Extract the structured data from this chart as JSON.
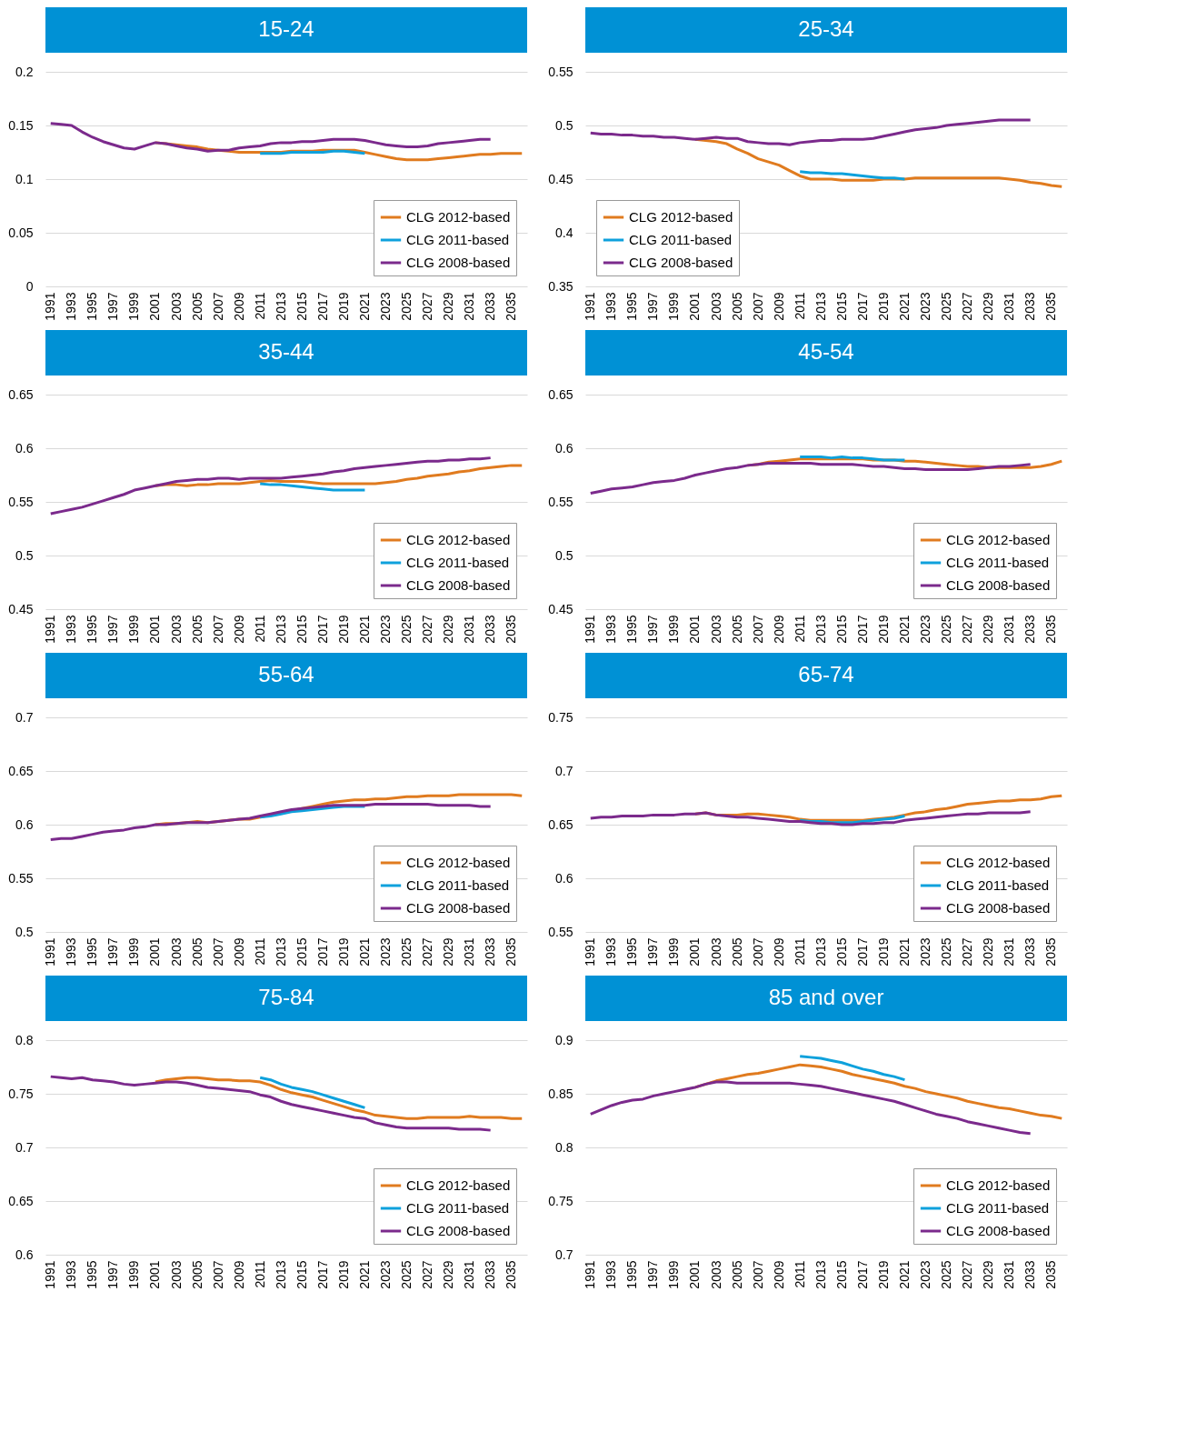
{
  "chart_data": [
    {
      "type": "line",
      "title": "15-24",
      "categories": [
        "1991",
        null,
        "1993",
        null,
        "1995",
        null,
        "1997",
        null,
        "1999",
        null,
        "2001",
        null,
        "2003",
        null,
        "2005",
        null,
        "2007",
        null,
        "2009",
        null,
        "2011",
        null,
        "2013",
        null,
        "2015",
        null,
        "2017",
        null,
        "2019",
        null,
        "2021",
        null,
        "2023",
        null,
        "2025",
        null,
        "2027",
        null,
        "2029",
        null,
        "2031",
        null,
        "2033",
        null,
        "2035",
        null
      ],
      "ylim": [
        0,
        0.2
      ],
      "yticks": [
        0,
        0.05,
        0.1,
        0.15,
        0.2
      ],
      "grid": "y",
      "legend": "bottom right",
      "series": [
        {
          "name": "CLG 2012-based",
          "color": "#e07b1f",
          "values": [
            null,
            null,
            null,
            null,
            null,
            null,
            null,
            null,
            null,
            null,
            0.134,
            0.133,
            0.132,
            0.131,
            0.13,
            0.128,
            0.127,
            0.126,
            0.125,
            0.125,
            0.125,
            0.125,
            0.125,
            0.126,
            0.126,
            0.126,
            0.127,
            0.127,
            0.127,
            0.127,
            0.125,
            0.123,
            0.121,
            0.119,
            0.118,
            0.118,
            0.118,
            0.119,
            0.12,
            0.121,
            0.122,
            0.123,
            0.123,
            0.124,
            0.124,
            0.124
          ]
        },
        {
          "name": "CLG 2011-based",
          "color": "#0ea1dc",
          "values": [
            null,
            null,
            null,
            null,
            null,
            null,
            null,
            null,
            null,
            null,
            null,
            null,
            null,
            null,
            null,
            null,
            null,
            null,
            null,
            null,
            0.124,
            0.124,
            0.124,
            0.125,
            0.125,
            0.125,
            0.125,
            0.126,
            0.126,
            0.125,
            0.124,
            null,
            null,
            null,
            null,
            null,
            null,
            null,
            null,
            null,
            null,
            null,
            null,
            null,
            null,
            null
          ]
        },
        {
          "name": "CLG 2008-based",
          "color": "#7b2a8c",
          "values": [
            0.152,
            0.151,
            0.15,
            0.144,
            0.139,
            0.135,
            0.132,
            0.129,
            0.128,
            0.131,
            0.134,
            0.133,
            0.131,
            0.129,
            0.128,
            0.126,
            0.127,
            0.127,
            0.129,
            0.13,
            0.131,
            0.133,
            0.134,
            0.134,
            0.135,
            0.135,
            0.136,
            0.137,
            0.137,
            0.137,
            0.136,
            0.134,
            0.132,
            0.131,
            0.13,
            0.13,
            0.131,
            0.133,
            0.134,
            0.135,
            0.136,
            0.137,
            0.137,
            null,
            null,
            null
          ]
        }
      ]
    },
    {
      "type": "line",
      "title": "25-34",
      "categories": [
        "1991",
        null,
        "1993",
        null,
        "1995",
        null,
        "1997",
        null,
        "1999",
        null,
        "2001",
        null,
        "2003",
        null,
        "2005",
        null,
        "2007",
        null,
        "2009",
        null,
        "2011",
        null,
        "2013",
        null,
        "2015",
        null,
        "2017",
        null,
        "2019",
        null,
        "2021",
        null,
        "2023",
        null,
        "2025",
        null,
        "2027",
        null,
        "2029",
        null,
        "2031",
        null,
        "2033",
        null,
        "2035",
        null
      ],
      "ylim": [
        0.35,
        0.55
      ],
      "yticks": [
        0.35,
        0.4,
        0.45,
        0.5,
        0.55
      ],
      "grid": "y",
      "legend": "bottom left",
      "series": [
        {
          "name": "CLG 2012-based",
          "color": "#e07b1f",
          "values": [
            null,
            null,
            null,
            null,
            null,
            null,
            null,
            null,
            null,
            null,
            0.487,
            0.486,
            0.485,
            0.483,
            0.478,
            0.474,
            0.469,
            0.466,
            0.463,
            0.458,
            0.453,
            0.45,
            0.45,
            0.45,
            0.449,
            0.449,
            0.449,
            0.449,
            0.45,
            0.45,
            0.45,
            0.451,
            0.451,
            0.451,
            0.451,
            0.451,
            0.451,
            0.451,
            0.451,
            0.451,
            0.45,
            0.449,
            0.447,
            0.446,
            0.444,
            0.443
          ]
        },
        {
          "name": "CLG 2011-based",
          "color": "#0ea1dc",
          "values": [
            null,
            null,
            null,
            null,
            null,
            null,
            null,
            null,
            null,
            null,
            null,
            null,
            null,
            null,
            null,
            null,
            null,
            null,
            null,
            null,
            0.457,
            0.456,
            0.456,
            0.455,
            0.455,
            0.454,
            0.453,
            0.452,
            0.451,
            0.451,
            0.45,
            null,
            null,
            null,
            null,
            null,
            null,
            null,
            null,
            null,
            null,
            null,
            null,
            null,
            null,
            null
          ]
        },
        {
          "name": "CLG 2008-based",
          "color": "#7b2a8c",
          "values": [
            0.493,
            0.492,
            0.492,
            0.491,
            0.491,
            0.49,
            0.49,
            0.489,
            0.489,
            0.488,
            0.487,
            0.488,
            0.489,
            0.488,
            0.488,
            0.485,
            0.484,
            0.483,
            0.483,
            0.482,
            0.484,
            0.485,
            0.486,
            0.486,
            0.487,
            0.487,
            0.487,
            0.488,
            0.49,
            0.492,
            0.494,
            0.496,
            0.497,
            0.498,
            0.5,
            0.501,
            0.502,
            0.503,
            0.504,
            0.505,
            0.505,
            0.505,
            0.505,
            null,
            null,
            null
          ]
        }
      ]
    },
    {
      "type": "line",
      "title": "35-44",
      "categories": [
        "1991",
        null,
        "1993",
        null,
        "1995",
        null,
        "1997",
        null,
        "1999",
        null,
        "2001",
        null,
        "2003",
        null,
        "2005",
        null,
        "2007",
        null,
        "2009",
        null,
        "2011",
        null,
        "2013",
        null,
        "2015",
        null,
        "2017",
        null,
        "2019",
        null,
        "2021",
        null,
        "2023",
        null,
        "2025",
        null,
        "2027",
        null,
        "2029",
        null,
        "2031",
        null,
        "2033",
        null,
        "2035",
        null
      ],
      "ylim": [
        0.45,
        0.65
      ],
      "yticks": [
        0.45,
        0.5,
        0.55,
        0.6,
        0.65
      ],
      "grid": "y",
      "legend": "bottom right",
      "series": [
        {
          "name": "CLG 2012-based",
          "color": "#e07b1f",
          "values": [
            null,
            null,
            null,
            null,
            null,
            null,
            null,
            null,
            null,
            null,
            0.565,
            0.566,
            0.566,
            0.565,
            0.566,
            0.566,
            0.567,
            0.567,
            0.567,
            0.568,
            0.569,
            0.57,
            0.569,
            0.569,
            0.569,
            0.568,
            0.567,
            0.567,
            0.567,
            0.567,
            0.567,
            0.567,
            0.568,
            0.569,
            0.571,
            0.572,
            0.574,
            0.575,
            0.576,
            0.578,
            0.579,
            0.581,
            0.582,
            0.583,
            0.584,
            0.584
          ]
        },
        {
          "name": "CLG 2011-based",
          "color": "#0ea1dc",
          "values": [
            null,
            null,
            null,
            null,
            null,
            null,
            null,
            null,
            null,
            null,
            null,
            null,
            null,
            null,
            null,
            null,
            null,
            null,
            null,
            null,
            0.567,
            0.566,
            0.566,
            0.565,
            0.564,
            0.563,
            0.562,
            0.561,
            0.561,
            0.561,
            0.561,
            null,
            null,
            null,
            null,
            null,
            null,
            null,
            null,
            null,
            null,
            null,
            null,
            null,
            null,
            null
          ]
        },
        {
          "name": "CLG 2008-based",
          "color": "#7b2a8c",
          "values": [
            0.539,
            0.541,
            0.543,
            0.545,
            0.548,
            0.551,
            0.554,
            0.557,
            0.561,
            0.563,
            0.565,
            0.567,
            0.569,
            0.57,
            0.571,
            0.571,
            0.572,
            0.572,
            0.571,
            0.572,
            0.572,
            0.572,
            0.572,
            0.573,
            0.574,
            0.575,
            0.576,
            0.578,
            0.579,
            0.581,
            0.582,
            0.583,
            0.584,
            0.585,
            0.586,
            0.587,
            0.588,
            0.588,
            0.589,
            0.589,
            0.59,
            0.59,
            0.591,
            null,
            null,
            null
          ]
        }
      ]
    },
    {
      "type": "line",
      "title": "45-54",
      "categories": [
        "1991",
        null,
        "1993",
        null,
        "1995",
        null,
        "1997",
        null,
        "1999",
        null,
        "2001",
        null,
        "2003",
        null,
        "2005",
        null,
        "2007",
        null,
        "2009",
        null,
        "2011",
        null,
        "2013",
        null,
        "2015",
        null,
        "2017",
        null,
        "2019",
        null,
        "2021",
        null,
        "2023",
        null,
        "2025",
        null,
        "2027",
        null,
        "2029",
        null,
        "2031",
        null,
        "2033",
        null,
        "2035",
        null
      ],
      "ylim": [
        0.45,
        0.65
      ],
      "yticks": [
        0.45,
        0.5,
        0.55,
        0.6,
        0.65
      ],
      "grid": "y",
      "legend": "bottom right",
      "series": [
        {
          "name": "CLG 2012-based",
          "color": "#e07b1f",
          "values": [
            null,
            null,
            null,
            null,
            null,
            null,
            null,
            null,
            null,
            null,
            null,
            null,
            null,
            null,
            null,
            0.584,
            0.585,
            0.587,
            0.588,
            0.589,
            0.59,
            0.59,
            0.59,
            0.59,
            0.59,
            0.59,
            0.59,
            0.589,
            0.589,
            0.589,
            0.588,
            0.588,
            0.587,
            0.586,
            0.585,
            0.584,
            0.583,
            0.583,
            0.582,
            0.582,
            0.582,
            0.582,
            0.582,
            0.583,
            0.585,
            0.588
          ]
        },
        {
          "name": "CLG 2011-based",
          "color": "#0ea1dc",
          "values": [
            null,
            null,
            null,
            null,
            null,
            null,
            null,
            null,
            null,
            null,
            null,
            null,
            null,
            null,
            null,
            null,
            null,
            null,
            null,
            null,
            0.592,
            0.592,
            0.592,
            0.591,
            0.592,
            0.591,
            0.591,
            0.59,
            0.589,
            0.589,
            0.589,
            null,
            null,
            null,
            null,
            null,
            null,
            null,
            null,
            null,
            null,
            null,
            null,
            null,
            null,
            null
          ]
        },
        {
          "name": "CLG 2008-based",
          "color": "#7b2a8c",
          "values": [
            0.558,
            0.56,
            0.562,
            0.563,
            0.564,
            0.566,
            0.568,
            0.569,
            0.57,
            0.572,
            0.575,
            0.577,
            0.579,
            0.581,
            0.582,
            0.584,
            0.585,
            0.586,
            0.586,
            0.586,
            0.586,
            0.586,
            0.585,
            0.585,
            0.585,
            0.585,
            0.584,
            0.583,
            0.583,
            0.582,
            0.581,
            0.581,
            0.58,
            0.58,
            0.58,
            0.58,
            0.58,
            0.581,
            0.582,
            0.583,
            0.583,
            0.584,
            0.585,
            null,
            null,
            null
          ]
        }
      ]
    },
    {
      "type": "line",
      "title": "55-64",
      "categories": [
        "1991",
        null,
        "1993",
        null,
        "1995",
        null,
        "1997",
        null,
        "1999",
        null,
        "2001",
        null,
        "2003",
        null,
        "2005",
        null,
        "2007",
        null,
        "2009",
        null,
        "2011",
        null,
        "2013",
        null,
        "2015",
        null,
        "2017",
        null,
        "2019",
        null,
        "2021",
        null,
        "2023",
        null,
        "2025",
        null,
        "2027",
        null,
        "2029",
        null,
        "2031",
        null,
        "2033",
        null,
        "2035",
        null
      ],
      "ylim": [
        0.5,
        0.7
      ],
      "yticks": [
        0.5,
        0.55,
        0.6,
        0.65,
        0.7
      ],
      "grid": "y",
      "legend": "bottom right",
      "series": [
        {
          "name": "CLG 2012-based",
          "color": "#e07b1f",
          "values": [
            null,
            null,
            null,
            null,
            null,
            null,
            null,
            null,
            null,
            null,
            0.6,
            0.601,
            0.601,
            0.602,
            0.603,
            0.602,
            0.603,
            0.604,
            0.605,
            0.605,
            0.607,
            0.609,
            0.611,
            0.613,
            0.615,
            0.617,
            0.619,
            0.621,
            0.622,
            0.623,
            0.623,
            0.624,
            0.624,
            0.625,
            0.626,
            0.626,
            0.627,
            0.627,
            0.627,
            0.628,
            0.628,
            0.628,
            0.628,
            0.628,
            0.628,
            0.627
          ]
        },
        {
          "name": "CLG 2011-based",
          "color": "#0ea1dc",
          "values": [
            null,
            null,
            null,
            null,
            null,
            null,
            null,
            null,
            null,
            null,
            null,
            null,
            null,
            null,
            null,
            null,
            null,
            null,
            null,
            null,
            0.607,
            0.608,
            0.61,
            0.612,
            0.613,
            0.614,
            0.615,
            0.616,
            0.617,
            0.617,
            0.617,
            null,
            null,
            null,
            null,
            null,
            null,
            null,
            null,
            null,
            null,
            null,
            null,
            null,
            null,
            null
          ]
        },
        {
          "name": "CLG 2008-based",
          "color": "#7b2a8c",
          "values": [
            0.586,
            0.587,
            0.587,
            0.589,
            0.591,
            0.593,
            0.594,
            0.595,
            0.597,
            0.598,
            0.6,
            0.6,
            0.601,
            0.602,
            0.602,
            0.602,
            0.603,
            0.604,
            0.605,
            0.606,
            0.608,
            0.61,
            0.612,
            0.614,
            0.615,
            0.616,
            0.617,
            0.618,
            0.618,
            0.618,
            0.618,
            0.619,
            0.619,
            0.619,
            0.619,
            0.619,
            0.619,
            0.618,
            0.618,
            0.618,
            0.618,
            0.617,
            0.617,
            null,
            null,
            null
          ]
        }
      ]
    },
    {
      "type": "line",
      "title": "65-74",
      "categories": [
        "1991",
        null,
        "1993",
        null,
        "1995",
        null,
        "1997",
        null,
        "1999",
        null,
        "2001",
        null,
        "2003",
        null,
        "2005",
        null,
        "2007",
        null,
        "2009",
        null,
        "2011",
        null,
        "2013",
        null,
        "2015",
        null,
        "2017",
        null,
        "2019",
        null,
        "2021",
        null,
        "2023",
        null,
        "2025",
        null,
        "2027",
        null,
        "2029",
        null,
        "2031",
        null,
        "2033",
        null,
        "2035",
        null
      ],
      "ylim": [
        0.55,
        0.75
      ],
      "yticks": [
        0.55,
        0.6,
        0.65,
        0.7,
        0.75
      ],
      "grid": "y",
      "legend": "bottom right",
      "series": [
        {
          "name": "CLG 2012-based",
          "color": "#e07b1f",
          "values": [
            null,
            null,
            null,
            null,
            null,
            null,
            null,
            null,
            null,
            null,
            0.66,
            0.661,
            0.659,
            0.659,
            0.659,
            0.66,
            0.66,
            0.659,
            0.658,
            0.657,
            0.655,
            0.654,
            0.654,
            0.654,
            0.654,
            0.654,
            0.654,
            0.655,
            0.656,
            0.657,
            0.659,
            0.661,
            0.662,
            0.664,
            0.665,
            0.667,
            0.669,
            0.67,
            0.671,
            0.672,
            0.672,
            0.673,
            0.673,
            0.674,
            0.676,
            0.677
          ]
        },
        {
          "name": "CLG 2011-based",
          "color": "#0ea1dc",
          "values": [
            null,
            null,
            null,
            null,
            null,
            null,
            null,
            null,
            null,
            null,
            null,
            null,
            null,
            null,
            null,
            null,
            null,
            null,
            null,
            null,
            0.654,
            0.653,
            0.653,
            0.652,
            0.652,
            0.652,
            0.653,
            0.654,
            0.655,
            0.656,
            0.658,
            null,
            null,
            null,
            null,
            null,
            null,
            null,
            null,
            null,
            null,
            null,
            null,
            null,
            null,
            null
          ]
        },
        {
          "name": "CLG 2008-based",
          "color": "#7b2a8c",
          "values": [
            0.656,
            0.657,
            0.657,
            0.658,
            0.658,
            0.658,
            0.659,
            0.659,
            0.659,
            0.66,
            0.66,
            0.661,
            0.659,
            0.658,
            0.657,
            0.657,
            0.656,
            0.655,
            0.654,
            0.653,
            0.653,
            0.652,
            0.651,
            0.651,
            0.65,
            0.65,
            0.651,
            0.651,
            0.652,
            0.652,
            0.654,
            0.655,
            0.656,
            0.657,
            0.658,
            0.659,
            0.66,
            0.66,
            0.661,
            0.661,
            0.661,
            0.661,
            0.662,
            null,
            null,
            null
          ]
        }
      ]
    },
    {
      "type": "line",
      "title": "75-84",
      "categories": [
        "1991",
        null,
        "1993",
        null,
        "1995",
        null,
        "1997",
        null,
        "1999",
        null,
        "2001",
        null,
        "2003",
        null,
        "2005",
        null,
        "2007",
        null,
        "2009",
        null,
        "2011",
        null,
        "2013",
        null,
        "2015",
        null,
        "2017",
        null,
        "2019",
        null,
        "2021",
        null,
        "2023",
        null,
        "2025",
        null,
        "2027",
        null,
        "2029",
        null,
        "2031",
        null,
        "2033",
        null,
        "2035",
        null
      ],
      "ylim": [
        0.6,
        0.8
      ],
      "yticks": [
        0.6,
        0.65,
        0.7,
        0.75,
        0.8
      ],
      "grid": "y",
      "legend": "bottom right",
      "series": [
        {
          "name": "CLG 2012-based",
          "color": "#e07b1f",
          "values": [
            null,
            null,
            null,
            null,
            null,
            null,
            null,
            null,
            null,
            null,
            0.761,
            0.763,
            0.764,
            0.765,
            0.765,
            0.764,
            0.763,
            0.763,
            0.762,
            0.762,
            0.761,
            0.758,
            0.754,
            0.751,
            0.749,
            0.747,
            0.744,
            0.741,
            0.738,
            0.735,
            0.733,
            0.73,
            0.729,
            0.728,
            0.727,
            0.727,
            0.728,
            0.728,
            0.728,
            0.728,
            0.729,
            0.728,
            0.728,
            0.728,
            0.727,
            0.727
          ]
        },
        {
          "name": "CLG 2011-based",
          "color": "#0ea1dc",
          "values": [
            null,
            null,
            null,
            null,
            null,
            null,
            null,
            null,
            null,
            null,
            null,
            null,
            null,
            null,
            null,
            null,
            null,
            null,
            null,
            null,
            0.765,
            0.763,
            0.759,
            0.756,
            0.754,
            0.752,
            0.749,
            0.746,
            0.743,
            0.74,
            0.737,
            null,
            null,
            null,
            null,
            null,
            null,
            null,
            null,
            null,
            null,
            null,
            null,
            null,
            null,
            null
          ]
        },
        {
          "name": "CLG 2008-based",
          "color": "#7b2a8c",
          "values": [
            0.766,
            0.765,
            0.764,
            0.765,
            0.763,
            0.762,
            0.761,
            0.759,
            0.758,
            0.759,
            0.76,
            0.761,
            0.761,
            0.76,
            0.758,
            0.756,
            0.755,
            0.754,
            0.753,
            0.752,
            0.749,
            0.747,
            0.743,
            0.74,
            0.738,
            0.736,
            0.734,
            0.732,
            0.73,
            0.728,
            0.727,
            0.723,
            0.721,
            0.719,
            0.718,
            0.718,
            0.718,
            0.718,
            0.718,
            0.717,
            0.717,
            0.717,
            0.716,
            null,
            null,
            null
          ]
        }
      ]
    },
    {
      "type": "line",
      "title": "85 and over",
      "categories": [
        "1991",
        null,
        "1993",
        null,
        "1995",
        null,
        "1997",
        null,
        "1999",
        null,
        "2001",
        null,
        "2003",
        null,
        "2005",
        null,
        "2007",
        null,
        "2009",
        null,
        "2011",
        null,
        "2013",
        null,
        "2015",
        null,
        "2017",
        null,
        "2019",
        null,
        "2021",
        null,
        "2023",
        null,
        "2025",
        null,
        "2027",
        null,
        "2029",
        null,
        "2031",
        null,
        "2033",
        null,
        "2035",
        null
      ],
      "ylim": [
        0.7,
        0.9
      ],
      "yticks": [
        0.7,
        0.75,
        0.8,
        0.85,
        0.9
      ],
      "grid": "y",
      "legend": "bottom right",
      "series": [
        {
          "name": "CLG 2012-based",
          "color": "#e07b1f",
          "values": [
            null,
            null,
            null,
            null,
            null,
            null,
            null,
            null,
            null,
            null,
            0.856,
            0.859,
            0.862,
            0.864,
            0.866,
            0.868,
            0.869,
            0.871,
            0.873,
            0.875,
            0.877,
            0.876,
            0.875,
            0.873,
            0.871,
            0.868,
            0.866,
            0.864,
            0.862,
            0.86,
            0.857,
            0.855,
            0.852,
            0.85,
            0.848,
            0.846,
            0.843,
            0.841,
            0.839,
            0.837,
            0.836,
            0.834,
            0.832,
            0.83,
            0.829,
            0.827
          ]
        },
        {
          "name": "CLG 2011-based",
          "color": "#0ea1dc",
          "values": [
            null,
            null,
            null,
            null,
            null,
            null,
            null,
            null,
            null,
            null,
            null,
            null,
            null,
            null,
            null,
            null,
            null,
            null,
            null,
            null,
            0.885,
            0.884,
            0.883,
            0.881,
            0.879,
            0.876,
            0.873,
            0.871,
            0.868,
            0.866,
            0.863,
            null,
            null,
            null,
            null,
            null,
            null,
            null,
            null,
            null,
            null,
            null,
            null,
            null,
            null,
            null
          ]
        },
        {
          "name": "CLG 2008-based",
          "color": "#7b2a8c",
          "values": [
            0.831,
            0.835,
            0.839,
            0.842,
            0.844,
            0.845,
            0.848,
            0.85,
            0.852,
            0.854,
            0.856,
            0.859,
            0.861,
            0.861,
            0.86,
            0.86,
            0.86,
            0.86,
            0.86,
            0.86,
            0.859,
            0.858,
            0.857,
            0.855,
            0.853,
            0.851,
            0.849,
            0.847,
            0.845,
            0.843,
            0.84,
            0.837,
            0.834,
            0.831,
            0.829,
            0.827,
            0.824,
            0.822,
            0.82,
            0.818,
            0.816,
            0.814,
            0.813,
            null,
            null,
            null
          ]
        }
      ]
    }
  ]
}
